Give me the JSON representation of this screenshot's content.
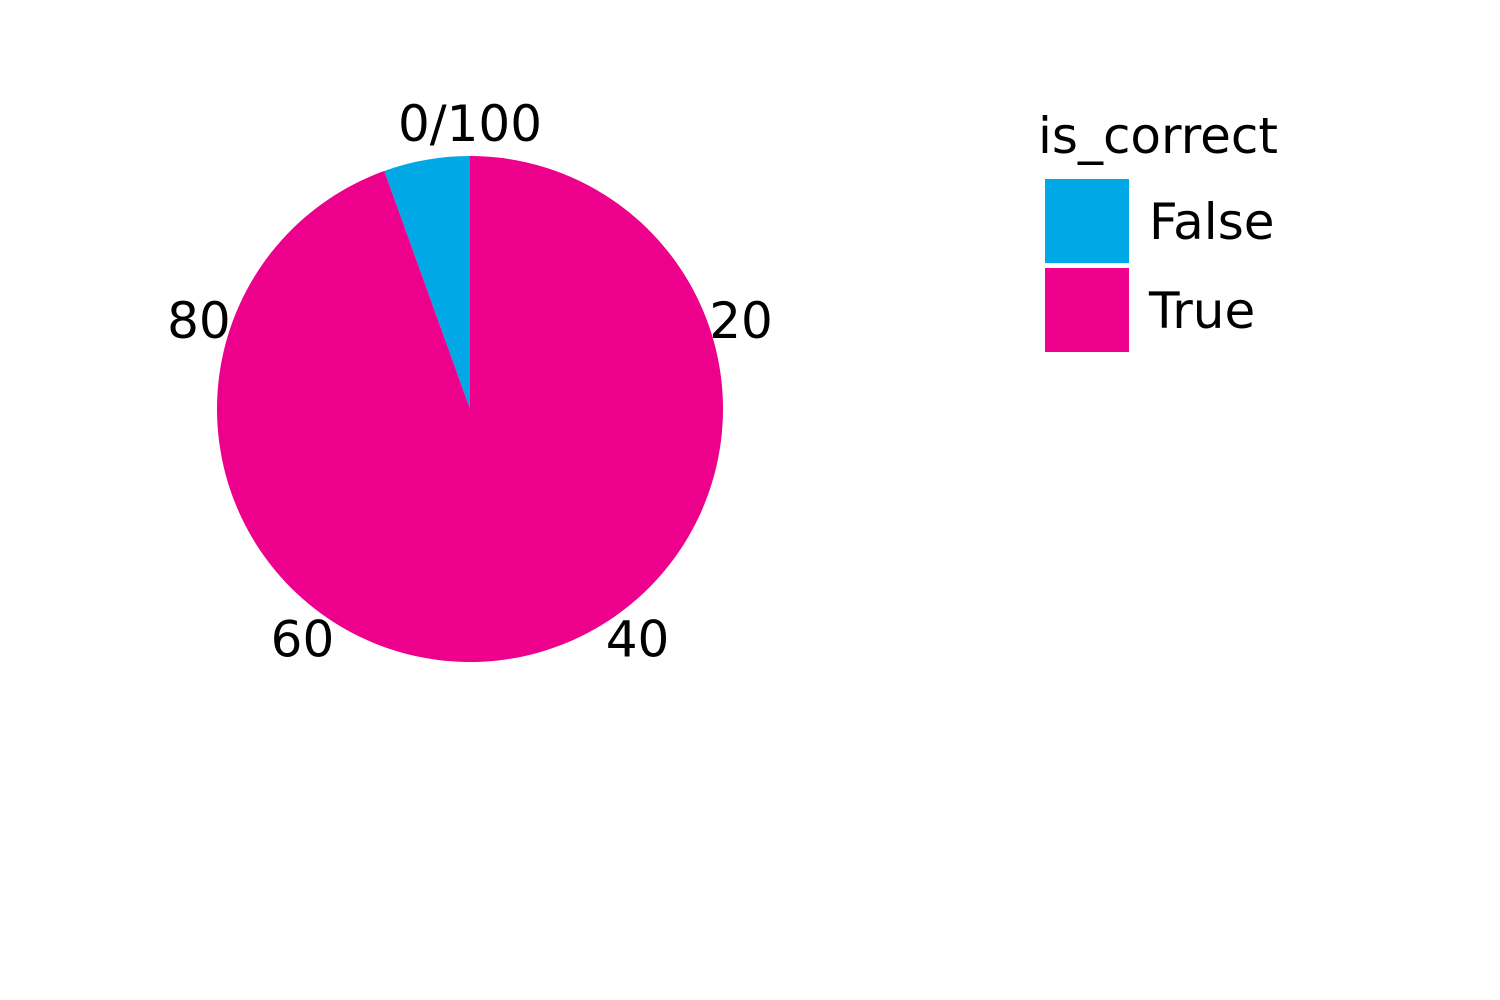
{
  "chart_data": {
    "type": "pie",
    "legend_title": "is_correct",
    "legend_position": "right",
    "series": [
      {
        "name": "False",
        "value": 5.5,
        "color": "#00a8e6"
      },
      {
        "name": "True",
        "value": 94.5,
        "color": "#ec008c"
      }
    ],
    "tick_labels": [
      {
        "text": "0/100",
        "value": 0
      },
      {
        "text": "20",
        "value": 20
      },
      {
        "text": "40",
        "value": 40
      },
      {
        "text": "60",
        "value": 60
      },
      {
        "text": "80",
        "value": 80
      }
    ],
    "total": 100
  }
}
